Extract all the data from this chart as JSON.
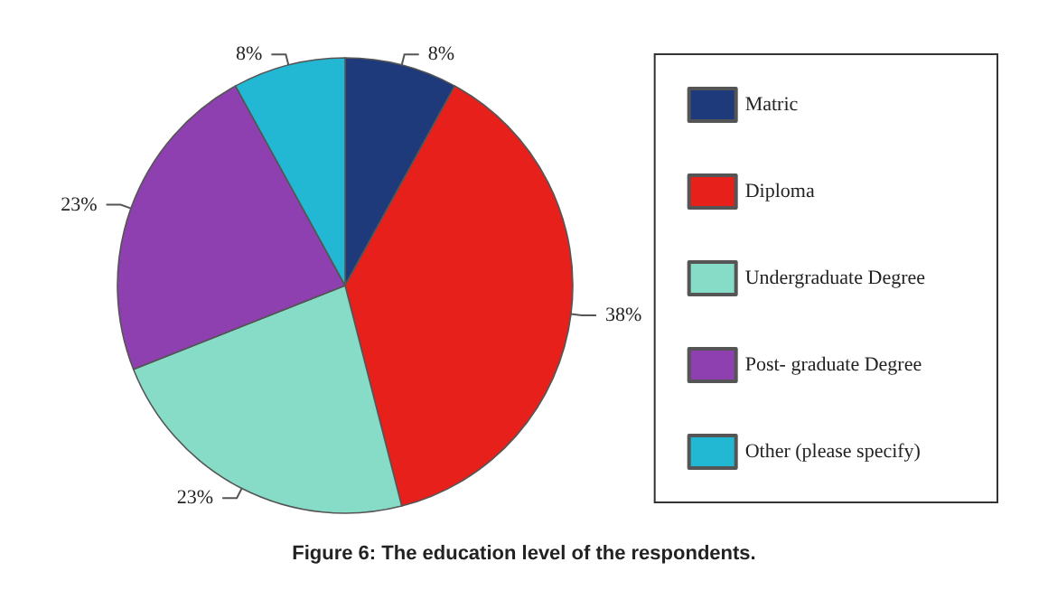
{
  "chart_data": {
    "type": "pie",
    "title": "Figure 6: The education level of the respondents.",
    "categories": [
      "Matric",
      "Diploma",
      "Undergraduate Degree",
      "Post- graduate Degree",
      "Other (please specify)"
    ],
    "values": [
      8,
      38,
      23,
      23,
      8
    ],
    "colors": [
      "#1f3a7a",
      "#e8201c",
      "#86dcc6",
      "#8e3fb0",
      "#22b8d4"
    ],
    "value_labels": [
      "8%",
      "38%",
      "23%",
      "23%",
      "8%"
    ],
    "legend": "right"
  }
}
